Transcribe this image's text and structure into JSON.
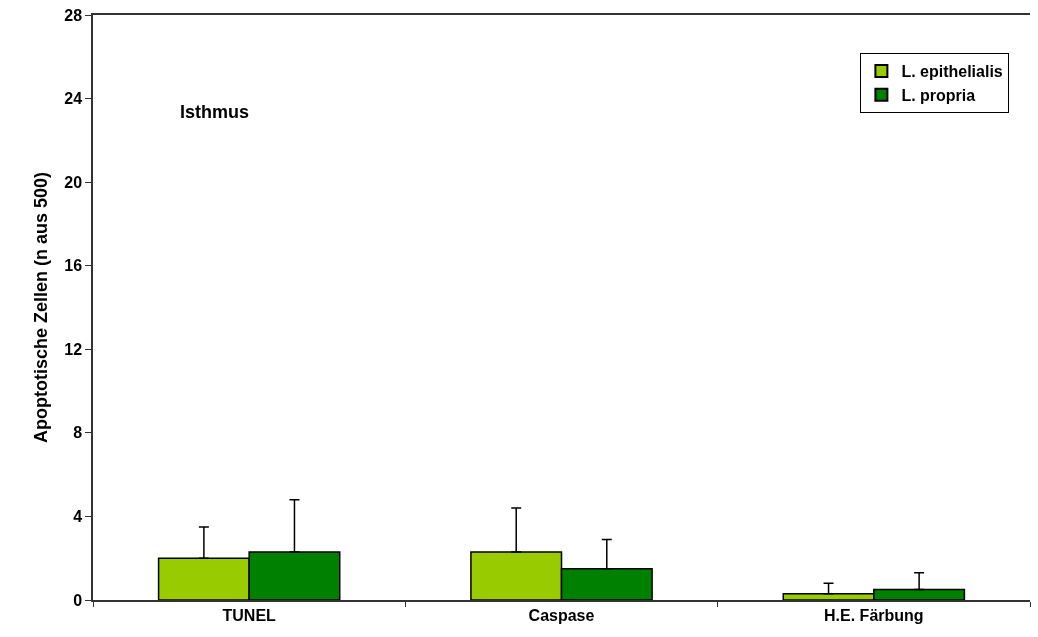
{
  "chart_data": {
    "type": "bar",
    "categories": [
      "TUNEL",
      "Caspase",
      "H.E. Färbung"
    ],
    "series": [
      {
        "name": "L. epithelialis",
        "color": "#99cc00",
        "values": [
          2.0,
          2.3,
          0.3
        ],
        "errors": [
          [
            2.0,
            3.5
          ],
          [
            2.3,
            4.4
          ],
          [
            0.3,
            0.8
          ]
        ]
      },
      {
        "name": "L. propria",
        "color": "#008000",
        "values": [
          2.3,
          1.5,
          0.5
        ],
        "errors": [
          [
            2.3,
            4.8
          ],
          [
            1.5,
            2.9
          ],
          [
            0.5,
            1.3
          ]
        ]
      }
    ],
    "ylabel": "Apoptotische Zellen (n aus 500)",
    "ylim": [
      0,
      28
    ],
    "yticks": [
      0,
      4,
      8,
      12,
      16,
      20,
      24,
      28
    ],
    "annotations": [
      "Isthmus"
    ],
    "legend": "top right"
  }
}
